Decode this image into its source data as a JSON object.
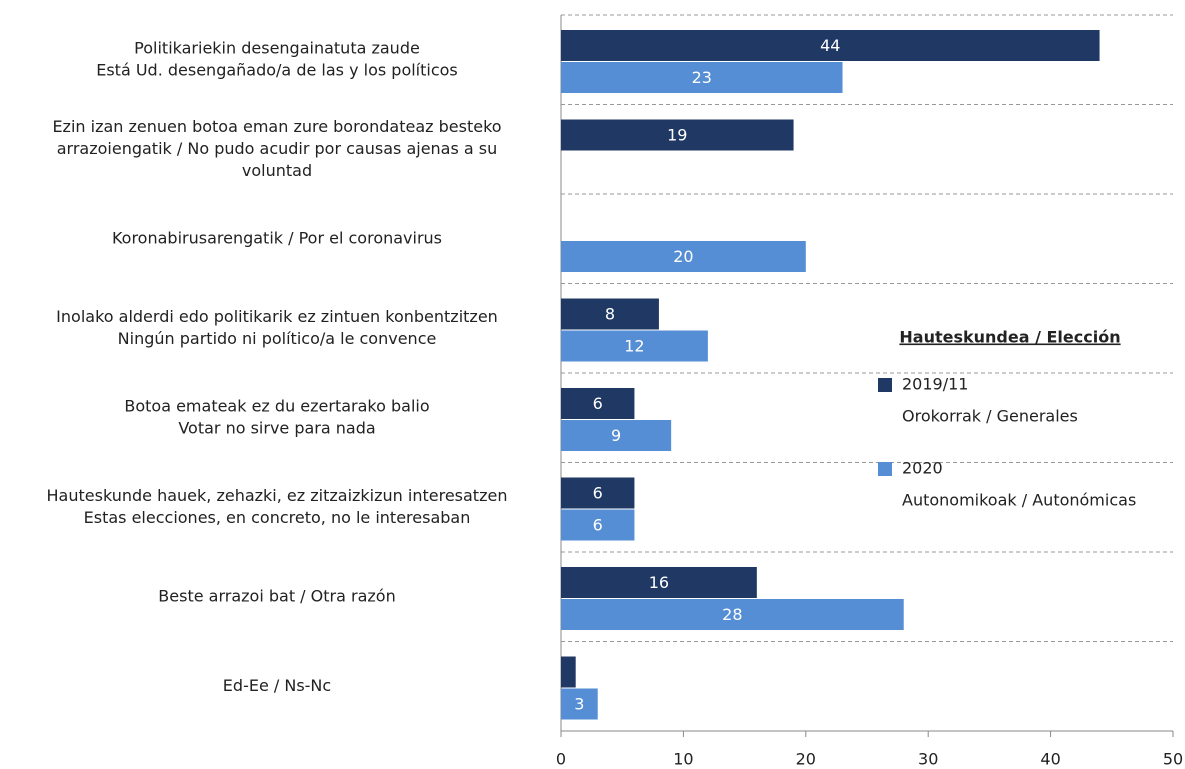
{
  "chart_data": {
    "type": "bar",
    "orientation": "horizontal",
    "categories": [
      [
        "Politikariekin desengainatuta zaude",
        "Está Ud. desengañado/a de las y los políticos"
      ],
      [
        "Ezin izan zenuen botoa eman zure borondateaz besteko",
        "arrazoiengatik / No pudo acudir por causas ajenas a su",
        "voluntad"
      ],
      [
        "Koronabirusarengatik / Por el coronavirus"
      ],
      [
        "Inolako alderdi edo politikarik ez zintuen konbentzitzen",
        "Ningún partido ni político/a le convence"
      ],
      [
        "Botoa emateak ez du ezertarako balio",
        "Votar no sirve para nada"
      ],
      [
        "Hauteskunde hauek, zehazki, ez zitzaizkizun interesatzen",
        "Estas elecciones, en concreto, no le interesaban"
      ],
      [
        "Beste arrazoi bat / Otra razón"
      ],
      [
        "Ed-Ee / Ns-Nc"
      ]
    ],
    "series": [
      {
        "name": [
          "2019/11",
          "Orokorrak / Generales"
        ],
        "color": "#1f3864",
        "values": [
          44,
          19,
          null,
          8,
          6,
          6,
          16,
          1.2
        ],
        "value_labels": [
          "44",
          "19",
          null,
          "8",
          "6",
          "6",
          "16",
          null
        ]
      },
      {
        "name": [
          "2020",
          "Autonomikoak / Autonómicas"
        ],
        "color": "#558ed5",
        "values": [
          23,
          null,
          20,
          12,
          9,
          6,
          28,
          3
        ],
        "value_labels": [
          "23",
          null,
          "20",
          "12",
          "9",
          "6",
          "28",
          "3"
        ]
      }
    ],
    "legend_title": "Hauteskundea / Elección",
    "xlim": [
      0,
      50
    ],
    "xticks": [
      0,
      10,
      20,
      30,
      40,
      50
    ]
  }
}
